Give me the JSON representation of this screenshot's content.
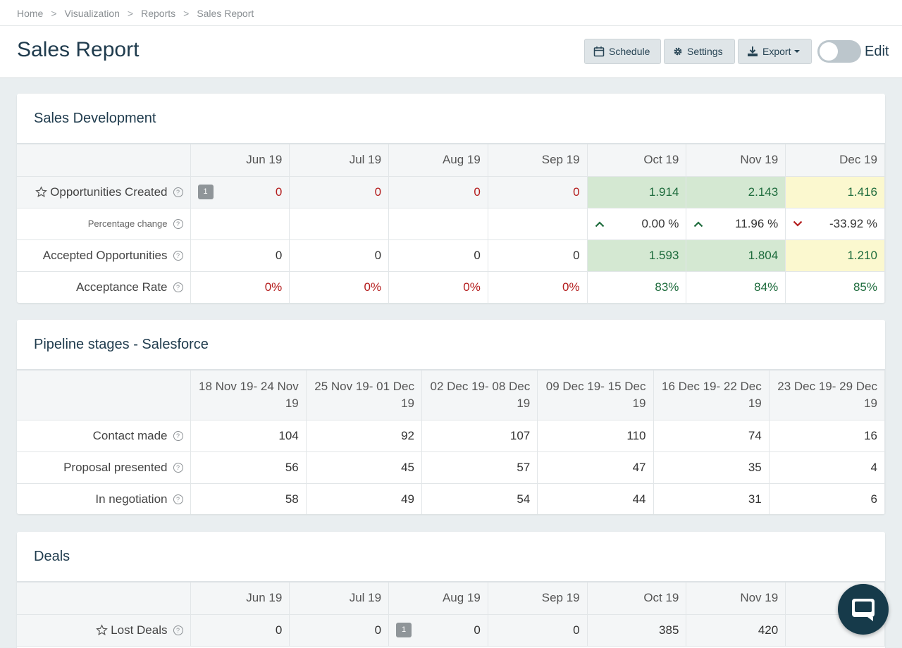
{
  "breadcrumb": [
    "Home",
    "Visualization",
    "Reports",
    "Sales Report"
  ],
  "breadcrumb_sep": ">",
  "page_title": "Sales Report",
  "toolbar": {
    "schedule": "Schedule",
    "settings": "Settings",
    "export": "Export",
    "edit": "Edit",
    "edit_on": false
  },
  "sales_dev": {
    "title": "Sales Development",
    "months": [
      "Jun 19",
      "Jul 19",
      "Aug 19",
      "Sep 19",
      "Oct 19",
      "Nov 19",
      "Dec 19"
    ],
    "opp_created": {
      "label": "Opportunities Created",
      "badge": "1",
      "values": [
        "0",
        "0",
        "0",
        "0",
        "1.914",
        "2.143",
        "1.416"
      ]
    },
    "pct_change": {
      "label": "Percentage change",
      "values": [
        "",
        "",
        "",
        "",
        "0.00 %",
        "11.96 %",
        "-33.92 %"
      ]
    },
    "accepted": {
      "label": "Accepted Opportunities",
      "values": [
        "0",
        "0",
        "0",
        "0",
        "1.593",
        "1.804",
        "1.210"
      ]
    },
    "rate": {
      "label": "Acceptance Rate",
      "values": [
        "0%",
        "0%",
        "0%",
        "0%",
        "83%",
        "84%",
        "85%"
      ]
    }
  },
  "pipeline": {
    "title": "Pipeline stages - Salesforce",
    "weeks": [
      "18 Nov 19- 24 Nov 19",
      "25 Nov 19- 01 Dec 19",
      "02 Dec 19- 08 Dec 19",
      "09 Dec 19- 15 Dec 19",
      "16 Dec 19- 22 Dec 19",
      "23 Dec 19- 29 Dec 19"
    ],
    "rows": [
      {
        "label": "Contact made",
        "values": [
          "104",
          "92",
          "107",
          "110",
          "74",
          "16"
        ]
      },
      {
        "label": "Proposal presented",
        "values": [
          "56",
          "45",
          "57",
          "47",
          "35",
          "4"
        ]
      },
      {
        "label": "In negotiation",
        "values": [
          "58",
          "49",
          "54",
          "44",
          "31",
          "6"
        ]
      }
    ]
  },
  "deals": {
    "title": "Deals",
    "months": [
      "Jun 19",
      "Jul 19",
      "Aug 19",
      "Sep 19",
      "Oct 19",
      "Nov 19",
      ""
    ],
    "lost": {
      "label": "Lost Deals",
      "badge": "1",
      "values": [
        "0",
        "0",
        "0",
        "0",
        "385",
        "420",
        ""
      ]
    }
  },
  "help_glyph": "?"
}
